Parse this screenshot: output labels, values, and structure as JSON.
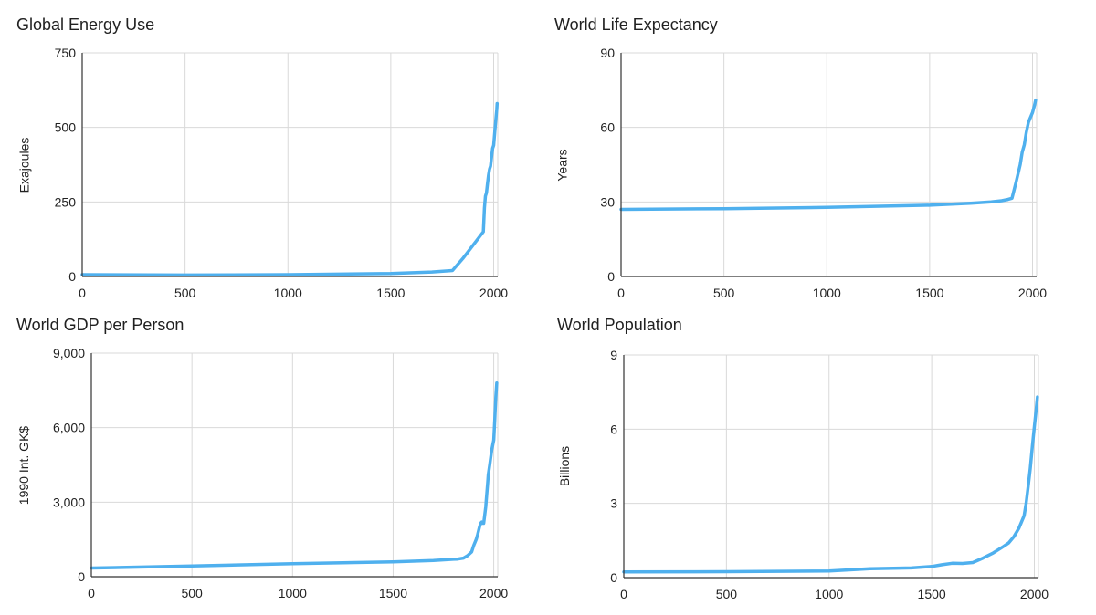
{
  "colors": {
    "line": "#4fb0ee",
    "grid": "#d9d9d9",
    "axis": "#333333"
  },
  "chart_data": [
    {
      "type": "line",
      "title": "Global Energy Use",
      "xlabel": "",
      "ylabel": "Exajoules",
      "xlim": [
        0,
        2020
      ],
      "ylim": [
        0,
        750
      ],
      "xticks": [
        0,
        500,
        1000,
        1500,
        2000
      ],
      "xtick_labels": [
        "0",
        "500",
        "1000",
        "1500",
        "2000"
      ],
      "yticks": [
        0,
        250,
        500,
        750
      ],
      "ytick_labels": [
        "0",
        "250",
        "500",
        "750"
      ],
      "series": [
        {
          "name": "Global Energy Use",
          "x": [
            0,
            500,
            1000,
            1500,
            1700,
            1800,
            1850,
            1900,
            1950,
            1955,
            1960,
            1965,
            1970,
            1975,
            1980,
            1985,
            1990,
            1995,
            2000,
            2005,
            2010,
            2015,
            2017
          ],
          "values": [
            6,
            5,
            6,
            10,
            15,
            20,
            60,
            105,
            150,
            230,
            270,
            280,
            310,
            340,
            360,
            370,
            400,
            430,
            440,
            480,
            520,
            560,
            580
          ]
        }
      ]
    },
    {
      "type": "line",
      "title": "World Life Expectancy",
      "xlabel": "",
      "ylabel": "Years",
      "xlim": [
        0,
        2020
      ],
      "ylim": [
        0,
        90
      ],
      "xticks": [
        0,
        500,
        1000,
        1500,
        2000
      ],
      "xtick_labels": [
        "0",
        "500",
        "1000",
        "1500",
        "2000"
      ],
      "yticks": [
        0,
        30,
        60,
        90
      ],
      "ytick_labels": [
        "0",
        "30",
        "60",
        "90"
      ],
      "series": [
        {
          "name": "World Life Expectancy",
          "x": [
            0,
            500,
            1000,
            1500,
            1700,
            1800,
            1850,
            1880,
            1900,
            1920,
            1940,
            1950,
            1960,
            1970,
            1980,
            1990,
            2000,
            2010,
            2015
          ],
          "values": [
            27,
            27.3,
            27.8,
            28.7,
            29.5,
            30,
            30.5,
            31,
            31.5,
            38,
            45,
            50,
            53,
            58,
            62,
            64,
            66,
            69,
            71
          ]
        }
      ]
    },
    {
      "type": "line",
      "title": "World GDP per Person",
      "xlabel": "",
      "ylabel": "1990 Int. GK$",
      "xlim": [
        0,
        2020
      ],
      "ylim": [
        0,
        9000
      ],
      "xticks": [
        0,
        500,
        1000,
        1500,
        2000
      ],
      "xtick_labels": [
        "0",
        "500",
        "1000",
        "1500",
        "2000"
      ],
      "yticks": [
        0,
        3000,
        6000,
        9000
      ],
      "ytick_labels": [
        "0",
        "3,000",
        "6,000",
        "9,000"
      ],
      "series": [
        {
          "name": "World GDP per Person",
          "x": [
            0,
            500,
            1000,
            1500,
            1700,
            1800,
            1820,
            1850,
            1870,
            1890,
            1900,
            1913,
            1920,
            1929,
            1935,
            1940,
            1945,
            1950,
            1960,
            1970,
            1973,
            1980,
            1990,
            2000,
            2005,
            2010,
            2015
          ],
          "values": [
            350,
            430,
            520,
            600,
            650,
            700,
            710,
            750,
            850,
            1000,
            1250,
            1500,
            1700,
            2000,
            2150,
            2200,
            2150,
            2150,
            2800,
            3800,
            4100,
            4500,
            5100,
            5500,
            6300,
            7200,
            7800
          ]
        }
      ]
    },
    {
      "type": "line",
      "title": "World Population",
      "xlabel": "",
      "ylabel": "Billions",
      "xlim": [
        0,
        2020
      ],
      "ylim": [
        0,
        9
      ],
      "xticks": [
        0,
        500,
        1000,
        1500,
        2000
      ],
      "xtick_labels": [
        "0",
        "500",
        "1000",
        "1500",
        "2000"
      ],
      "yticks": [
        0,
        3,
        6,
        9
      ],
      "ytick_labels": [
        "0",
        "3",
        "6",
        "9"
      ],
      "series": [
        {
          "name": "World Population",
          "x": [
            0,
            500,
            1000,
            1200,
            1400,
            1500,
            1550,
            1600,
            1650,
            1700,
            1750,
            1800,
            1850,
            1875,
            1900,
            1925,
            1950,
            1960,
            1970,
            1980,
            1990,
            2000,
            2010,
            2015
          ],
          "values": [
            0.23,
            0.24,
            0.27,
            0.36,
            0.39,
            0.45,
            0.52,
            0.58,
            0.57,
            0.61,
            0.79,
            1.0,
            1.26,
            1.4,
            1.65,
            2.0,
            2.5,
            3.0,
            3.7,
            4.4,
            5.3,
            6.1,
            6.9,
            7.3
          ]
        }
      ]
    }
  ]
}
